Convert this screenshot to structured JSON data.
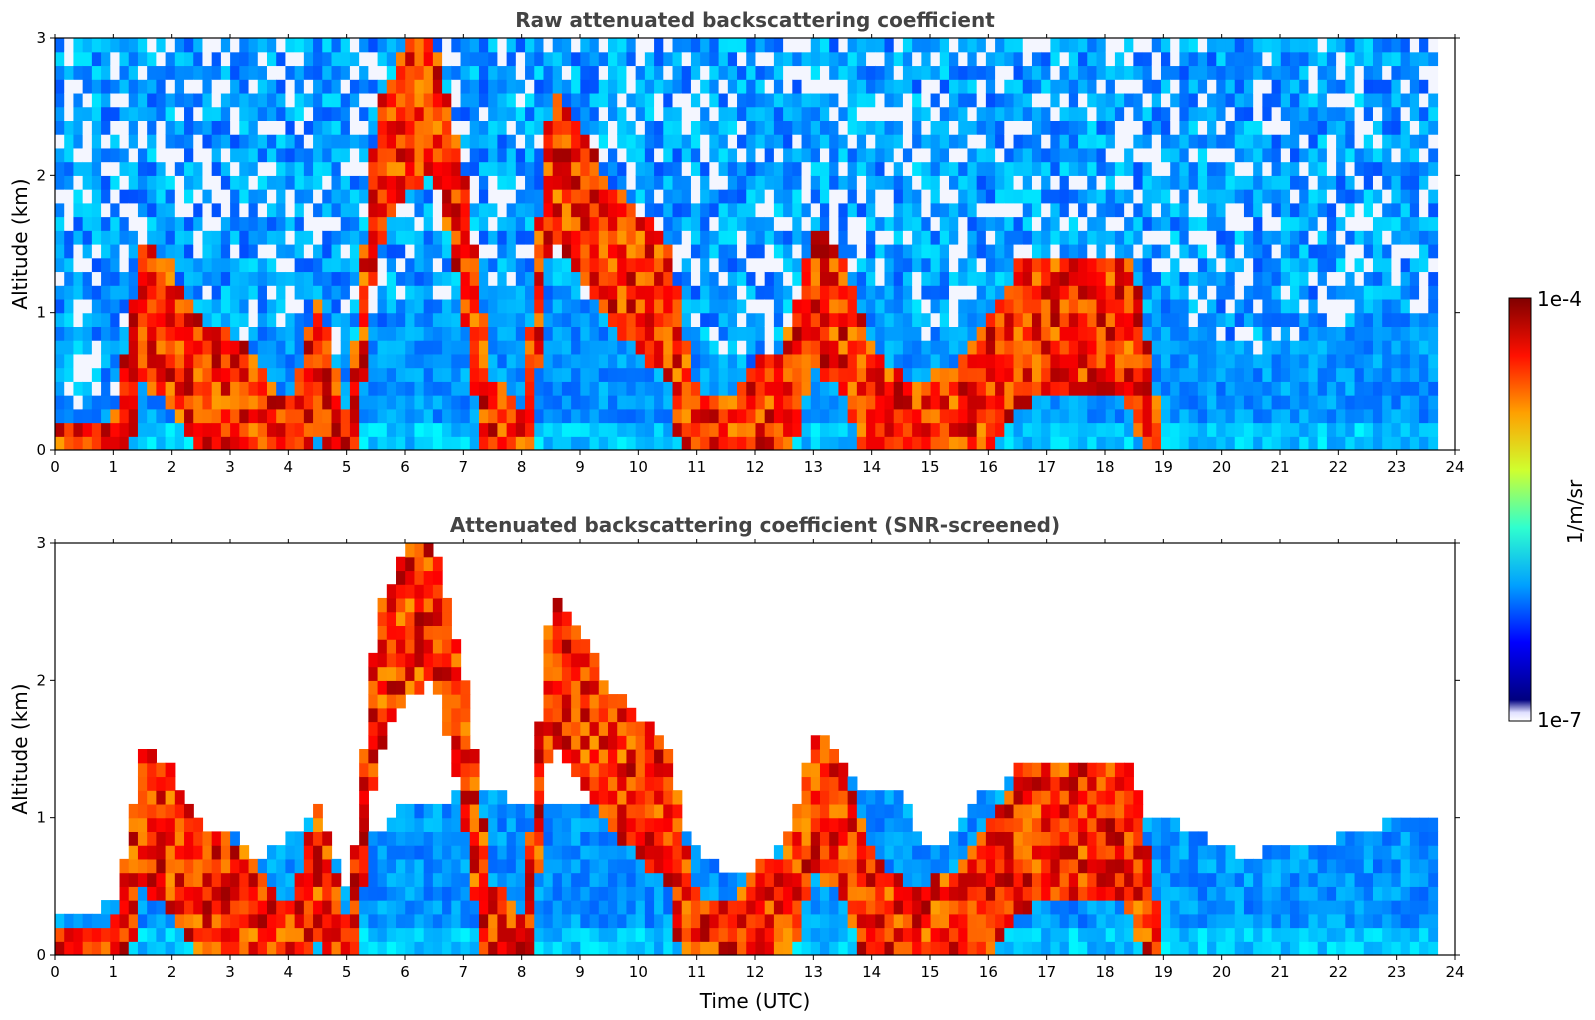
{
  "chart_data": [
    {
      "type": "heatmap",
      "title": "Raw attenuated backscattering coefficient",
      "xlabel": "",
      "ylabel": "Altitude (km)",
      "xlim": [
        0,
        24
      ],
      "ylim": [
        0,
        3
      ],
      "xticks": [
        "0",
        "1",
        "2",
        "3",
        "4",
        "5",
        "6",
        "7",
        "8",
        "9",
        "10",
        "11",
        "12",
        "13",
        "14",
        "15",
        "16",
        "17",
        "18",
        "19",
        "20",
        "21",
        "22",
        "23",
        "24"
      ],
      "yticks": [
        "0",
        "1",
        "2",
        "3"
      ],
      "screened": false,
      "data_end_time": 23.7
    },
    {
      "type": "heatmap",
      "title": "Attenuated backscattering coefficient (SNR-screened)",
      "xlabel": "Time (UTC)",
      "ylabel": "Altitude (km)",
      "xlim": [
        0,
        24
      ],
      "ylim": [
        0,
        3
      ],
      "xticks": [
        "0",
        "1",
        "2",
        "3",
        "4",
        "5",
        "6",
        "7",
        "8",
        "9",
        "10",
        "11",
        "12",
        "13",
        "14",
        "15",
        "16",
        "17",
        "18",
        "19",
        "20",
        "21",
        "22",
        "23",
        "24"
      ],
      "yticks": [
        "0",
        "1",
        "2",
        "3"
      ],
      "screened": true,
      "data_end_time": 23.7
    }
  ],
  "colorbar": {
    "label": "1/m/sr",
    "max_label": "1e-4",
    "min_label": "1e-7",
    "scale": "log",
    "range": [
      1e-07,
      0.0001
    ],
    "colormap": "jet",
    "colors": [
      "#00007f",
      "#0000ff",
      "#00a0ff",
      "#2fffcf",
      "#cfff2f",
      "#ffa000",
      "#ff1000",
      "#800000"
    ]
  },
  "profile": {
    "note_free": true,
    "time_hours": [
      0,
      0.5,
      1,
      1.5,
      2,
      2.5,
      3,
      3.5,
      4,
      4.5,
      5,
      5.5,
      6,
      6.5,
      7,
      7.5,
      8,
      8.5,
      9,
      9.5,
      10,
      10.5,
      11,
      11.5,
      12,
      12.5,
      13,
      13.5,
      14,
      14.5,
      15,
      15.5,
      16,
      16.5,
      17,
      17.5,
      18,
      18.5,
      19,
      19.5,
      20,
      20.5,
      21,
      21.5,
      22,
      22.5,
      23,
      23.5
    ],
    "boundary_layer_top_km": [
      0.3,
      0.25,
      0.4,
      0.6,
      0.8,
      0.85,
      0.9,
      0.7,
      0.9,
      1.0,
      0.5,
      0.9,
      1.1,
      1.1,
      1.2,
      1.2,
      1.1,
      1.1,
      1.05,
      1.1,
      1.0,
      1.0,
      0.8,
      0.6,
      0.6,
      0.8,
      1.0,
      1.3,
      1.2,
      1.2,
      0.7,
      1.0,
      1.2,
      1.3,
      1.0,
      1.0,
      1.1,
      1.0,
      1.0,
      0.9,
      0.8,
      0.7,
      0.8,
      0.75,
      0.85,
      0.9,
      1.0,
      1.0
    ],
    "strong_layer_top_km": [
      0.1,
      0.1,
      0.1,
      1.4,
      1.2,
      0.8,
      0.7,
      0.5,
      0.2,
      1.0,
      0.1,
      2.3,
      2.8,
      2.9,
      1.9,
      0.4,
      0.1,
      2.5,
      2.2,
      1.8,
      1.6,
      1.4,
      0.3,
      0.2,
      0.5,
      0.6,
      1.5,
      1.3,
      0.6,
      0.4,
      0.4,
      0.5,
      0.8,
      1.2,
      1.3,
      1.3,
      1.3,
      1.2,
      0.0,
      0.0,
      0.0,
      0.0,
      0.0,
      0.0,
      0.0,
      0.0,
      0.0,
      0.0
    ]
  }
}
